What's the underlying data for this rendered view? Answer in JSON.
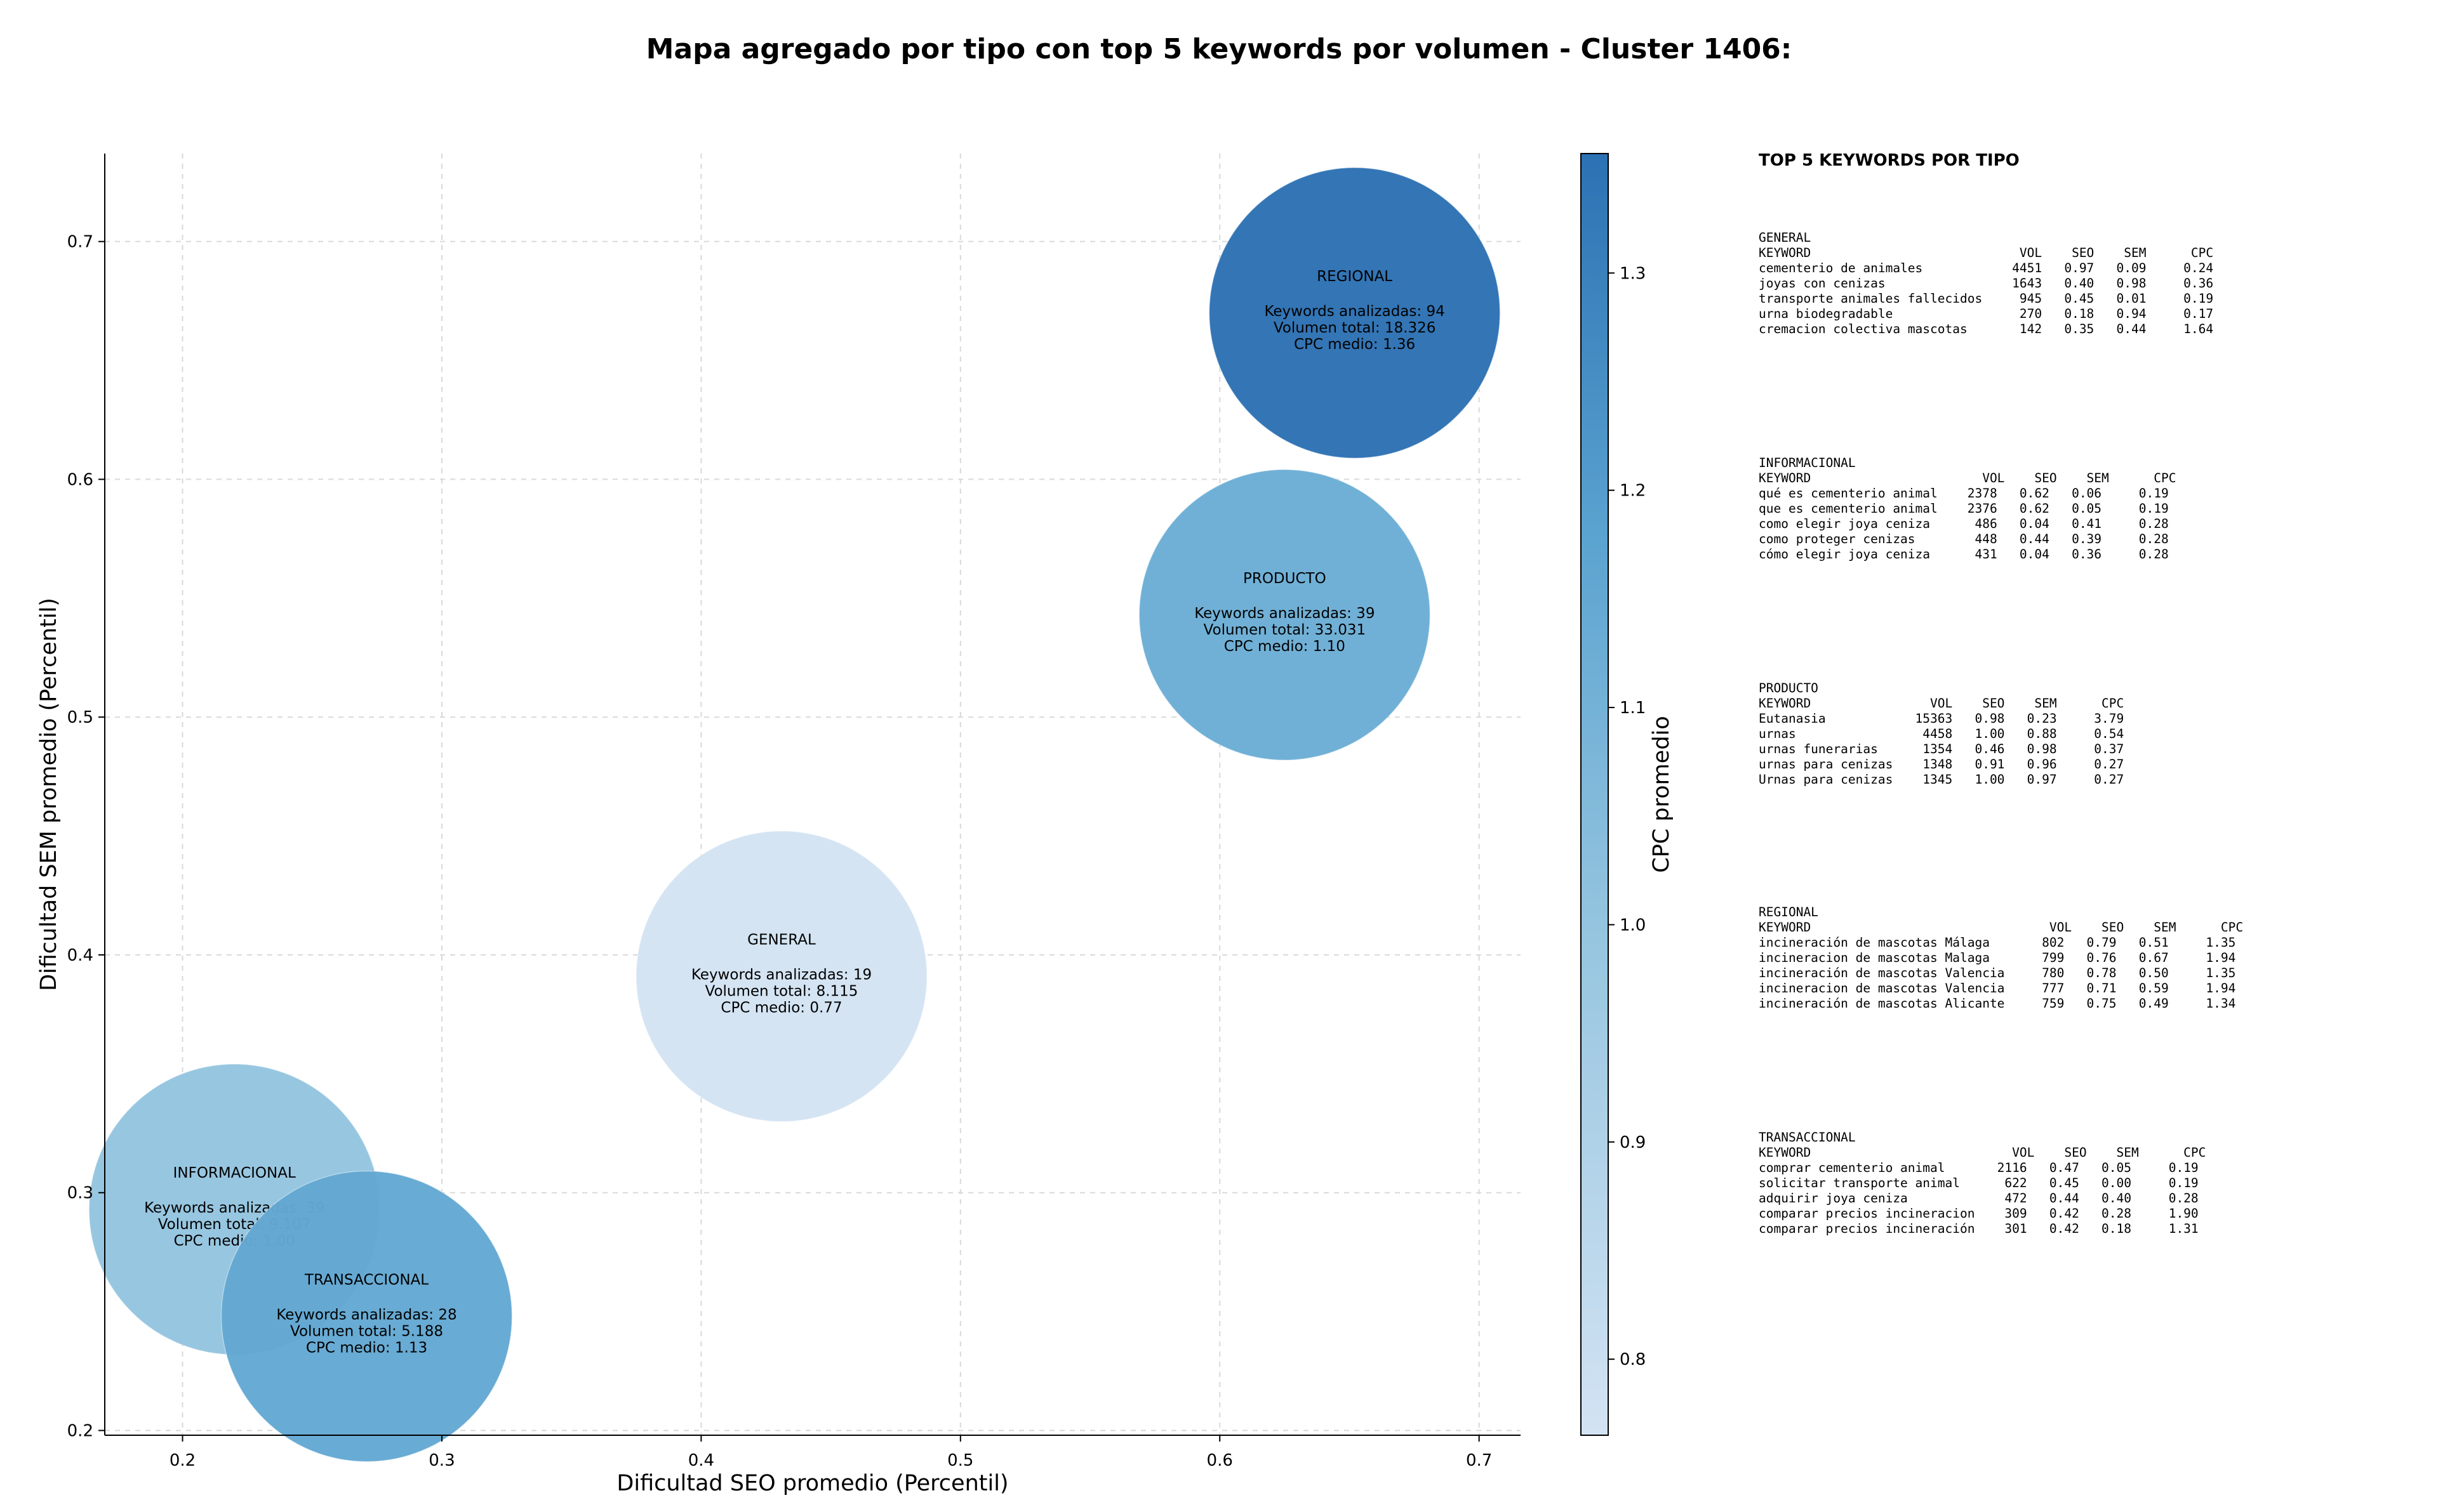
{
  "title": "Mapa agregado por tipo con top 5 keywords por volumen - Cluster 1406:",
  "chart_data": {
    "type": "scatter",
    "subtype": "bubble",
    "xlabel": "Dificultad SEO promedio (Percentil)",
    "ylabel": "Dificultad SEM promedio (Percentil)",
    "xlim": [
      0.17,
      0.716
    ],
    "ylim": [
      0.198,
      0.737
    ],
    "xticks": [
      "0.2",
      "0.3",
      "0.4",
      "0.5",
      "0.6",
      "0.7"
    ],
    "yticks": [
      "0.2",
      "0.3",
      "0.4",
      "0.5",
      "0.6",
      "0.7"
    ],
    "grid": true,
    "colorbar": {
      "label": "CPC promedio",
      "range": [
        0.765,
        1.355
      ],
      "ticks": [
        "0.8",
        "0.9",
        "1.0",
        "1.1",
        "1.2",
        "1.3"
      ],
      "colormap": "Blues",
      "min_color": "#d3e3f3",
      "max_color": "#2c71b3"
    },
    "points": [
      {
        "name": "REGIONAL",
        "x": 0.652,
        "y": 0.67,
        "keywords_line": "Keywords analizadas: 94",
        "volume_line": "Volumen total: 18.326",
        "cpc_line": "CPC medio: 1.36",
        "cpc": 1.36,
        "color": "#2c71b3"
      },
      {
        "name": "PRODUCTO",
        "x": 0.625,
        "y": 0.543,
        "keywords_line": "Keywords analizadas: 39",
        "volume_line": "Volumen total: 33.031",
        "cpc_line": "CPC medio: 1.10",
        "cpc": 1.1,
        "color": "#6badd5"
      },
      {
        "name": "GENERAL",
        "x": 0.431,
        "y": 0.391,
        "keywords_line": "Keywords analizadas: 19",
        "volume_line": "Volumen total: 8.115",
        "cpc_line": "CPC medio: 0.77",
        "cpc": 0.77,
        "color": "#d3e3f3"
      },
      {
        "name": "INFORMACIONAL",
        "x": 0.22,
        "y": 0.293,
        "keywords_line": "Keywords analizadas: 39",
        "volume_line": "Volumen total: 9.107",
        "cpc_line": "CPC medio: 1.00",
        "cpc": 1.0,
        "color": "#94c4df"
      },
      {
        "name": "TRANSACCIONAL",
        "x": 0.271,
        "y": 0.248,
        "keywords_line": "Keywords analizadas: 28",
        "volume_line": "Volumen total: 5.188",
        "cpc_line": "CPC medio: 1.13",
        "cpc": 1.13,
        "color": "#63a8d3"
      }
    ]
  },
  "top_keywords": {
    "heading": "TOP 5 KEYWORDS POR TIPO",
    "blocks": [
      {
        "text": "GENERAL\nKEYWORD                            VOL    SEO    SEM      CPC\ncementerio de animales            4451   0.97   0.09     0.24\njoyas con cenizas                 1643   0.40   0.98     0.36\ntransporte animales fallecidos     945   0.45   0.01     0.19\nurna biodegradable                 270   0.18   0.94     0.17\ncremacion colectiva mascotas       142   0.35   0.44     1.64"
      },
      {
        "text": "INFORMACIONAL\nKEYWORD                       VOL    SEO    SEM      CPC\nqué es cementerio animal    2378   0.62   0.06     0.19\nque es cementerio animal    2376   0.62   0.05     0.19\ncomo elegir joya ceniza      486   0.04   0.41     0.28\ncomo proteger cenizas        448   0.44   0.39     0.28\ncómo elegir joya ceniza      431   0.04   0.36     0.28"
      },
      {
        "text": "PRODUCTO\nKEYWORD                VOL    SEO    SEM      CPC\nEutanasia            15363   0.98   0.23     3.79\nurnas                 4458   1.00   0.88     0.54\nurnas funerarias      1354   0.46   0.98     0.37\nurnas para cenizas    1348   0.91   0.96     0.27\nUrnas para cenizas    1345   1.00   0.97     0.27"
      },
      {
        "text": "REGIONAL\nKEYWORD                                VOL    SEO    SEM      CPC\nincineración de mascotas Málaga       802   0.79   0.51     1.35\nincineracion de mascotas Malaga       799   0.76   0.67     1.94\nincineración de mascotas Valencia     780   0.78   0.50     1.35\nincineracion de mascotas Valencia     777   0.71   0.59     1.94\nincineración de mascotas Alicante     759   0.75   0.49     1.34"
      },
      {
        "text": "TRANSACCIONAL\nKEYWORD                           VOL    SEO    SEM      CPC\ncomprar cementerio animal       2116   0.47   0.05     0.19\nsolicitar transporte animal      622   0.45   0.00     0.19\nadquirir joya ceniza             472   0.44   0.40     0.28\ncomparar precios incineracion    309   0.42   0.28     1.90\ncomparar precios incineración    301   0.42   0.18     1.31"
      }
    ]
  }
}
